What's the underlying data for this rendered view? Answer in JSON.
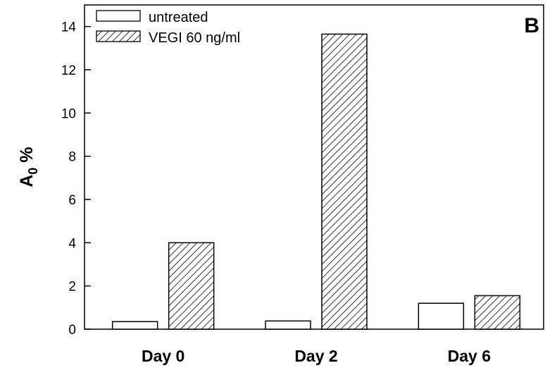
{
  "chart_data": {
    "type": "bar",
    "title": "",
    "panel_label": "B",
    "xlabel": "",
    "ylabel": {
      "main": "A",
      "subscript": "0",
      "suffix": " %"
    },
    "categories": [
      "Day 0",
      "Day 2",
      "Day 6"
    ],
    "series": [
      {
        "name": "untreated",
        "values": [
          0.35,
          0.38,
          1.2
        ],
        "fill": "plain"
      },
      {
        "name": "VEGI 60 ng/ml",
        "values": [
          4.0,
          13.65,
          1.55
        ],
        "fill": "hatched"
      }
    ],
    "ylim": [
      0,
      15
    ],
    "yticks": [
      0,
      2,
      4,
      6,
      8,
      10,
      12,
      14
    ],
    "grid": false,
    "legend_position": "top-left",
    "colors": {
      "bar_fill": "#ffffff",
      "stroke": "#000000",
      "hatch": "#000000"
    }
  }
}
